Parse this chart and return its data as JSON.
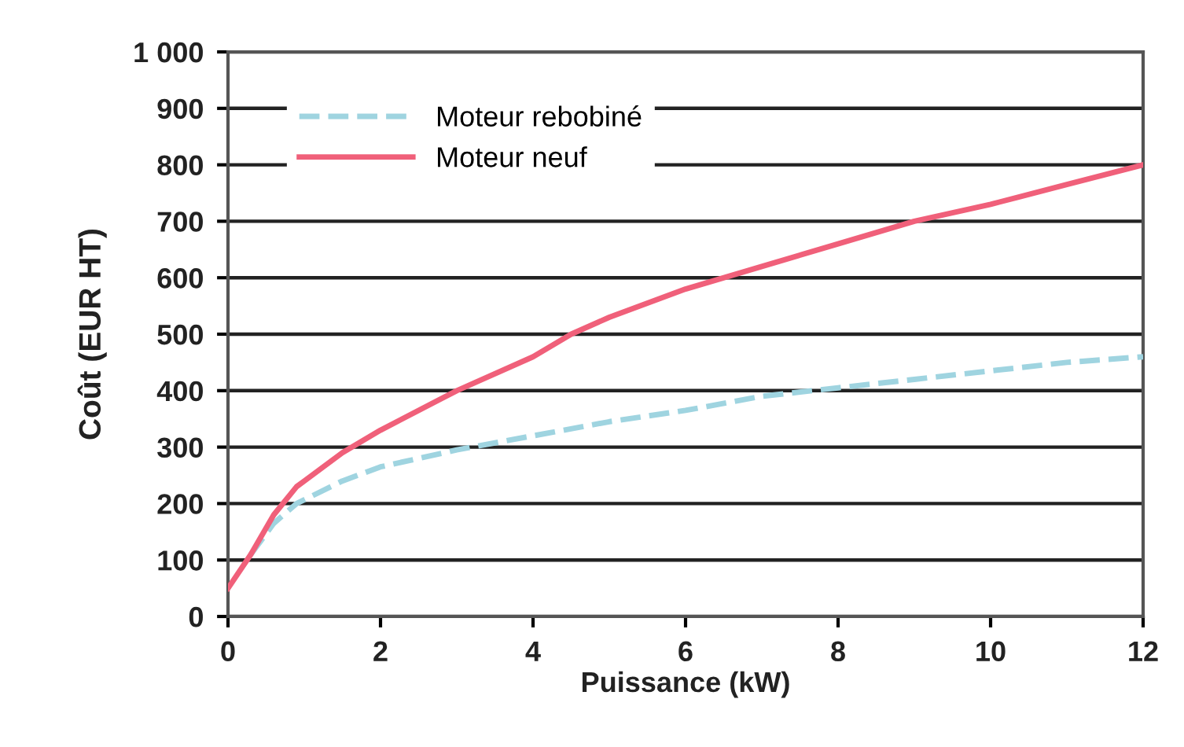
{
  "chart_data": {
    "type": "line",
    "xlabel": "Puissance (kW)",
    "ylabel": "Coût (EUR HT)",
    "xlim": [
      0,
      12
    ],
    "xticks": [
      0,
      2,
      4,
      6,
      8,
      10,
      12
    ],
    "ylim": [
      0,
      1000
    ],
    "yticks": [
      0,
      100,
      200,
      300,
      400,
      500,
      600,
      700,
      800,
      900,
      {
        "value": 1000,
        "label": "1 000"
      }
    ],
    "grid": "y",
    "legend": "top left",
    "marker": "none",
    "series": [
      {
        "name": "Moteur rebobiné",
        "color": "#9fd4e0",
        "line_style": "dashed",
        "x": [
          0.3,
          0.6,
          0.9,
          1.5,
          2,
          3,
          4,
          5,
          6,
          7,
          8,
          9,
          10,
          11,
          12
        ],
        "values": [
          110,
          165,
          200,
          240,
          265,
          295,
          320,
          345,
          365,
          390,
          405,
          420,
          435,
          450,
          460
        ]
      },
      {
        "name": "Moteur neuf",
        "color": "#f0607a",
        "line_style": "solid",
        "x": [
          0,
          0.3,
          0.6,
          0.9,
          1,
          1.5,
          2,
          3,
          4,
          4.5,
          5,
          6,
          7,
          8,
          9,
          10,
          11,
          12
        ],
        "values": [
          50,
          110,
          180,
          230,
          240,
          290,
          330,
          400,
          460,
          500,
          530,
          580,
          620,
          660,
          700,
          730,
          765,
          800
        ]
      }
    ]
  }
}
